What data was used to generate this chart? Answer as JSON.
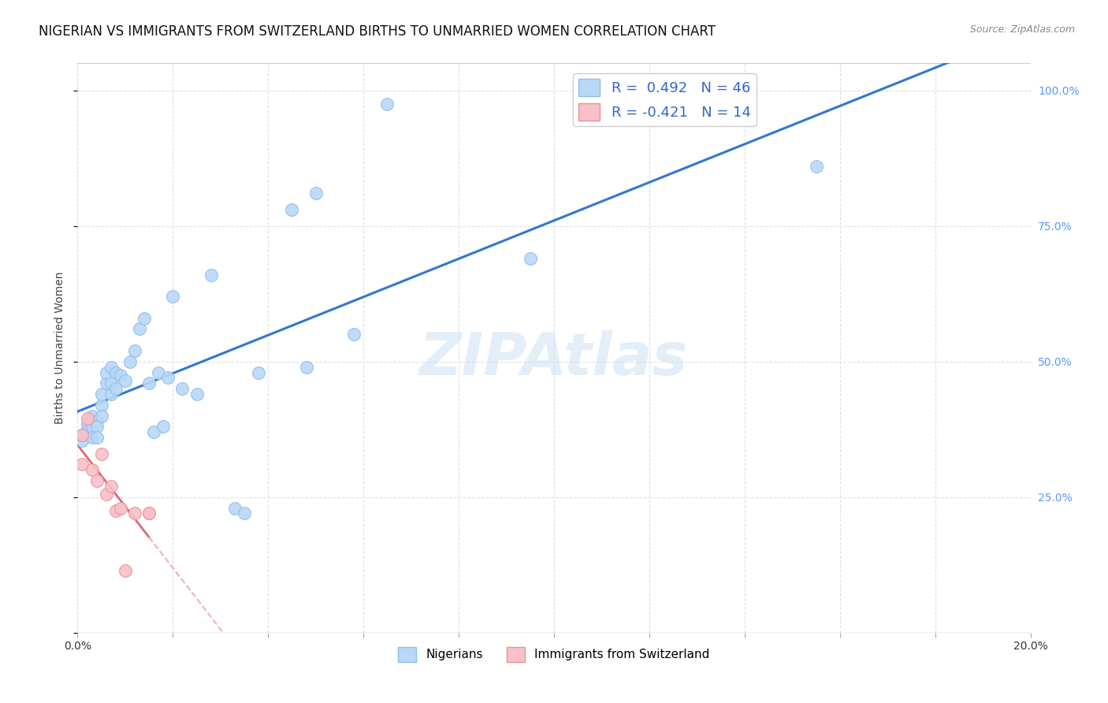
{
  "title": "NIGERIAN VS IMMIGRANTS FROM SWITZERLAND BIRTHS TO UNMARRIED WOMEN CORRELATION CHART",
  "source": "Source: ZipAtlas.com",
  "ylabel": "Births to Unmarried Women",
  "legend_entries": [
    {
      "label": "R =  0.492   N = 46",
      "color": "#a8c8f0",
      "edge": "#7ab0e0"
    },
    {
      "label": "R = -0.421   N = 14",
      "color": "#f0b0b8",
      "edge": "#e07080"
    }
  ],
  "legend_bottom": [
    "Nigerians",
    "Immigrants from Switzerland"
  ],
  "watermark": "ZIPAtlas",
  "nigerian_x": [
    0.001,
    0.001,
    0.002,
    0.002,
    0.002,
    0.003,
    0.003,
    0.003,
    0.004,
    0.004,
    0.004,
    0.005,
    0.005,
    0.005,
    0.006,
    0.006,
    0.007,
    0.007,
    0.007,
    0.008,
    0.008,
    0.009,
    0.01,
    0.011,
    0.012,
    0.013,
    0.014,
    0.015,
    0.016,
    0.017,
    0.018,
    0.019,
    0.02,
    0.022,
    0.025,
    0.028,
    0.033,
    0.035,
    0.038,
    0.045,
    0.048,
    0.05,
    0.058,
    0.065,
    0.095,
    0.155
  ],
  "nigerian_y": [
    0.355,
    0.365,
    0.375,
    0.385,
    0.37,
    0.38,
    0.4,
    0.36,
    0.39,
    0.38,
    0.36,
    0.42,
    0.4,
    0.44,
    0.46,
    0.48,
    0.44,
    0.46,
    0.49,
    0.45,
    0.48,
    0.475,
    0.465,
    0.5,
    0.52,
    0.56,
    0.58,
    0.46,
    0.37,
    0.48,
    0.38,
    0.47,
    0.62,
    0.45,
    0.44,
    0.66,
    0.23,
    0.22,
    0.48,
    0.78,
    0.49,
    0.81,
    0.55,
    0.975,
    0.69,
    0.86
  ],
  "swiss_x": [
    0.001,
    0.001,
    0.002,
    0.003,
    0.004,
    0.005,
    0.006,
    0.007,
    0.008,
    0.009,
    0.01,
    0.012,
    0.015,
    0.015
  ],
  "swiss_y": [
    0.365,
    0.31,
    0.395,
    0.3,
    0.28,
    0.33,
    0.255,
    0.27,
    0.225,
    0.23,
    0.115,
    0.22,
    0.22,
    0.22
  ],
  "nigerian_color": "#b8d8f8",
  "nigerian_edge": "#90bce8",
  "swiss_color": "#f8c0c8",
  "swiss_edge": "#e89098",
  "trendline_nigerian_color": "#3377cc",
  "trendline_swiss_color": "#dd6677",
  "trendline_swiss_dashed_color": "#f0b0bb",
  "background_color": "#ffffff",
  "grid_color": "#e0e0e0",
  "xlim": [
    0.0,
    0.2
  ],
  "ylim": [
    0.0,
    1.05
  ],
  "title_fontsize": 12,
  "axis_label_fontsize": 10,
  "tick_fontsize": 10,
  "right_tick_color": "#5599ff"
}
